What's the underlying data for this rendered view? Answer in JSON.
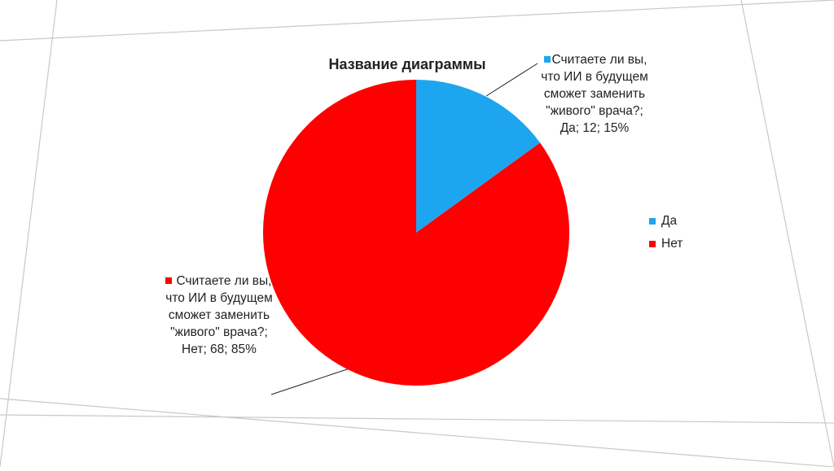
{
  "chart_data": {
    "type": "pie",
    "title": "Название диаграммы",
    "categories": [
      "Да",
      "Нет"
    ],
    "values": [
      12,
      68
    ],
    "value_labels": [
      "Считаете ли вы, что ИИ в будущем сможет заменить \"живого\" врача?; Да; 12; 15%",
      "Считаете ли вы, что ИИ в будущем сможет заменить \"живого\" врача?; Нет; 68; 85%"
    ],
    "colors": [
      "#1ea5f0",
      "#ff0000"
    ],
    "legend": "right"
  }
}
